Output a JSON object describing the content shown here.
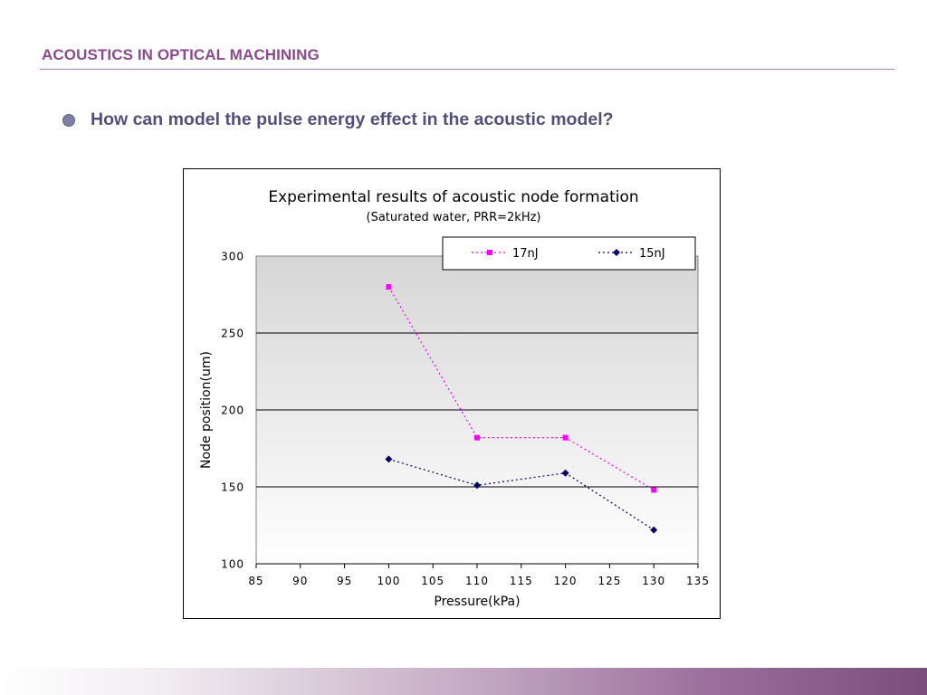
{
  "slide": {
    "title": "ACOUSTICS IN OPTICAL MACHINING",
    "bullet": "How can model the pulse energy effect in the acoustic model?"
  },
  "colors": {
    "title": "#8b4a8c",
    "bullet_text": "#50507a",
    "series_17nJ": "#ff00ff",
    "series_15nJ": "#000066"
  },
  "chart_data": {
    "type": "line",
    "title": "Experimental results of acoustic node formation",
    "subtitle": "(Saturated water, PRR=2kHz)",
    "xlabel": "Pressure(kPa)",
    "ylabel": "Node position(um)",
    "xlim": [
      85,
      135
    ],
    "ylim": [
      100,
      300
    ],
    "x_ticks": [
      "85",
      "90",
      "95",
      "100",
      "105",
      "110",
      "115",
      "120",
      "125",
      "130",
      "135"
    ],
    "y_ticks": [
      "100",
      "150",
      "200",
      "250",
      "300"
    ],
    "grid": "horizontal",
    "legend_position": "top-right",
    "series": [
      {
        "name": "17nJ",
        "color": "#ff00ff",
        "marker": "square",
        "x": [
          100,
          110,
          120,
          130
        ],
        "y": [
          280,
          182,
          182,
          148
        ]
      },
      {
        "name": "15nJ",
        "color": "#000066",
        "marker": "diamond",
        "x": [
          100,
          110,
          120,
          130
        ],
        "y": [
          168,
          151,
          159,
          122
        ]
      }
    ]
  }
}
